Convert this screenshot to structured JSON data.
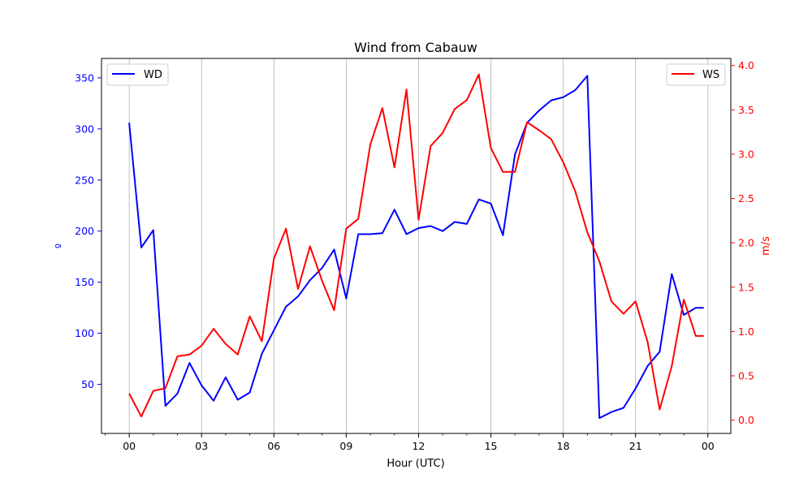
{
  "chart_data": {
    "type": "line",
    "title": "Wind from Cabauw",
    "xlabel": "Hour (UTC)",
    "ylabel_left": "º",
    "ylabel_right": "m/s",
    "x_tick_labels": [
      "00",
      "03",
      "06",
      "09",
      "12",
      "15",
      "18",
      "21",
      "00"
    ],
    "x_tick_hours": [
      0,
      3,
      6,
      9,
      12,
      15,
      18,
      21,
      24
    ],
    "xlim_hours": [
      -1.15,
      24.95
    ],
    "grid": "vertical-major",
    "left_axis": {
      "ylim": [
        2,
        369
      ],
      "ticks": [
        50,
        100,
        150,
        200,
        250,
        300,
        350
      ],
      "color": "#0000ff"
    },
    "right_axis": {
      "ylim": [
        -0.15,
        4.08
      ],
      "ticks": [
        "0.0",
        "0.5",
        "1.0",
        "1.5",
        "2.0",
        "2.5",
        "3.0",
        "3.5",
        "4.0"
      ],
      "color": "#ff0000"
    },
    "legend_left": {
      "placement": "top-left",
      "label": "WD"
    },
    "legend_right": {
      "placement": "top-right",
      "label": "WS"
    },
    "hours": [
      0,
      0.5,
      1,
      1.5,
      2,
      2.5,
      3,
      3.5,
      4,
      4.5,
      5,
      5.5,
      6,
      6.5,
      7,
      7.5,
      8,
      8.5,
      9,
      9.5,
      10,
      10.5,
      11,
      11.5,
      12,
      12.5,
      13,
      13.5,
      14,
      14.5,
      15,
      15.5,
      16,
      16.5,
      17,
      17.5,
      18,
      18.5,
      19,
      19.5,
      20,
      20.5,
      21,
      21.5,
      22,
      22.5,
      23,
      23.5,
      23.83
    ],
    "series": [
      {
        "name": "WD",
        "axis": "left",
        "color": "#0000ff",
        "values": [
          306,
          184,
          201,
          29,
          41,
          71,
          49,
          34,
          57,
          35,
          42,
          80,
          103,
          126,
          136,
          152,
          164,
          182,
          134,
          197,
          197,
          198,
          221,
          197,
          203,
          205,
          200,
          209,
          207,
          231,
          227,
          196,
          275,
          306,
          318,
          328,
          331,
          338,
          352,
          17,
          23,
          27,
          46,
          68,
          82,
          158,
          118,
          125,
          125
        ]
      },
      {
        "name": "WS",
        "axis": "right",
        "color": "#ff0000",
        "values": [
          0.3,
          0.04,
          0.33,
          0.36,
          0.72,
          0.74,
          0.84,
          1.03,
          0.86,
          0.74,
          1.17,
          0.89,
          1.82,
          2.16,
          1.48,
          1.96,
          1.57,
          1.24,
          2.16,
          2.27,
          3.11,
          3.52,
          2.85,
          3.73,
          2.26,
          3.09,
          3.24,
          3.51,
          3.61,
          3.9,
          3.07,
          2.8,
          2.8,
          3.36,
          3.27,
          3.17,
          2.91,
          2.58,
          2.12,
          1.79,
          1.34,
          1.2,
          1.34,
          0.88,
          0.12,
          0.61,
          1.36,
          0.95,
          0.95
        ]
      }
    ]
  }
}
